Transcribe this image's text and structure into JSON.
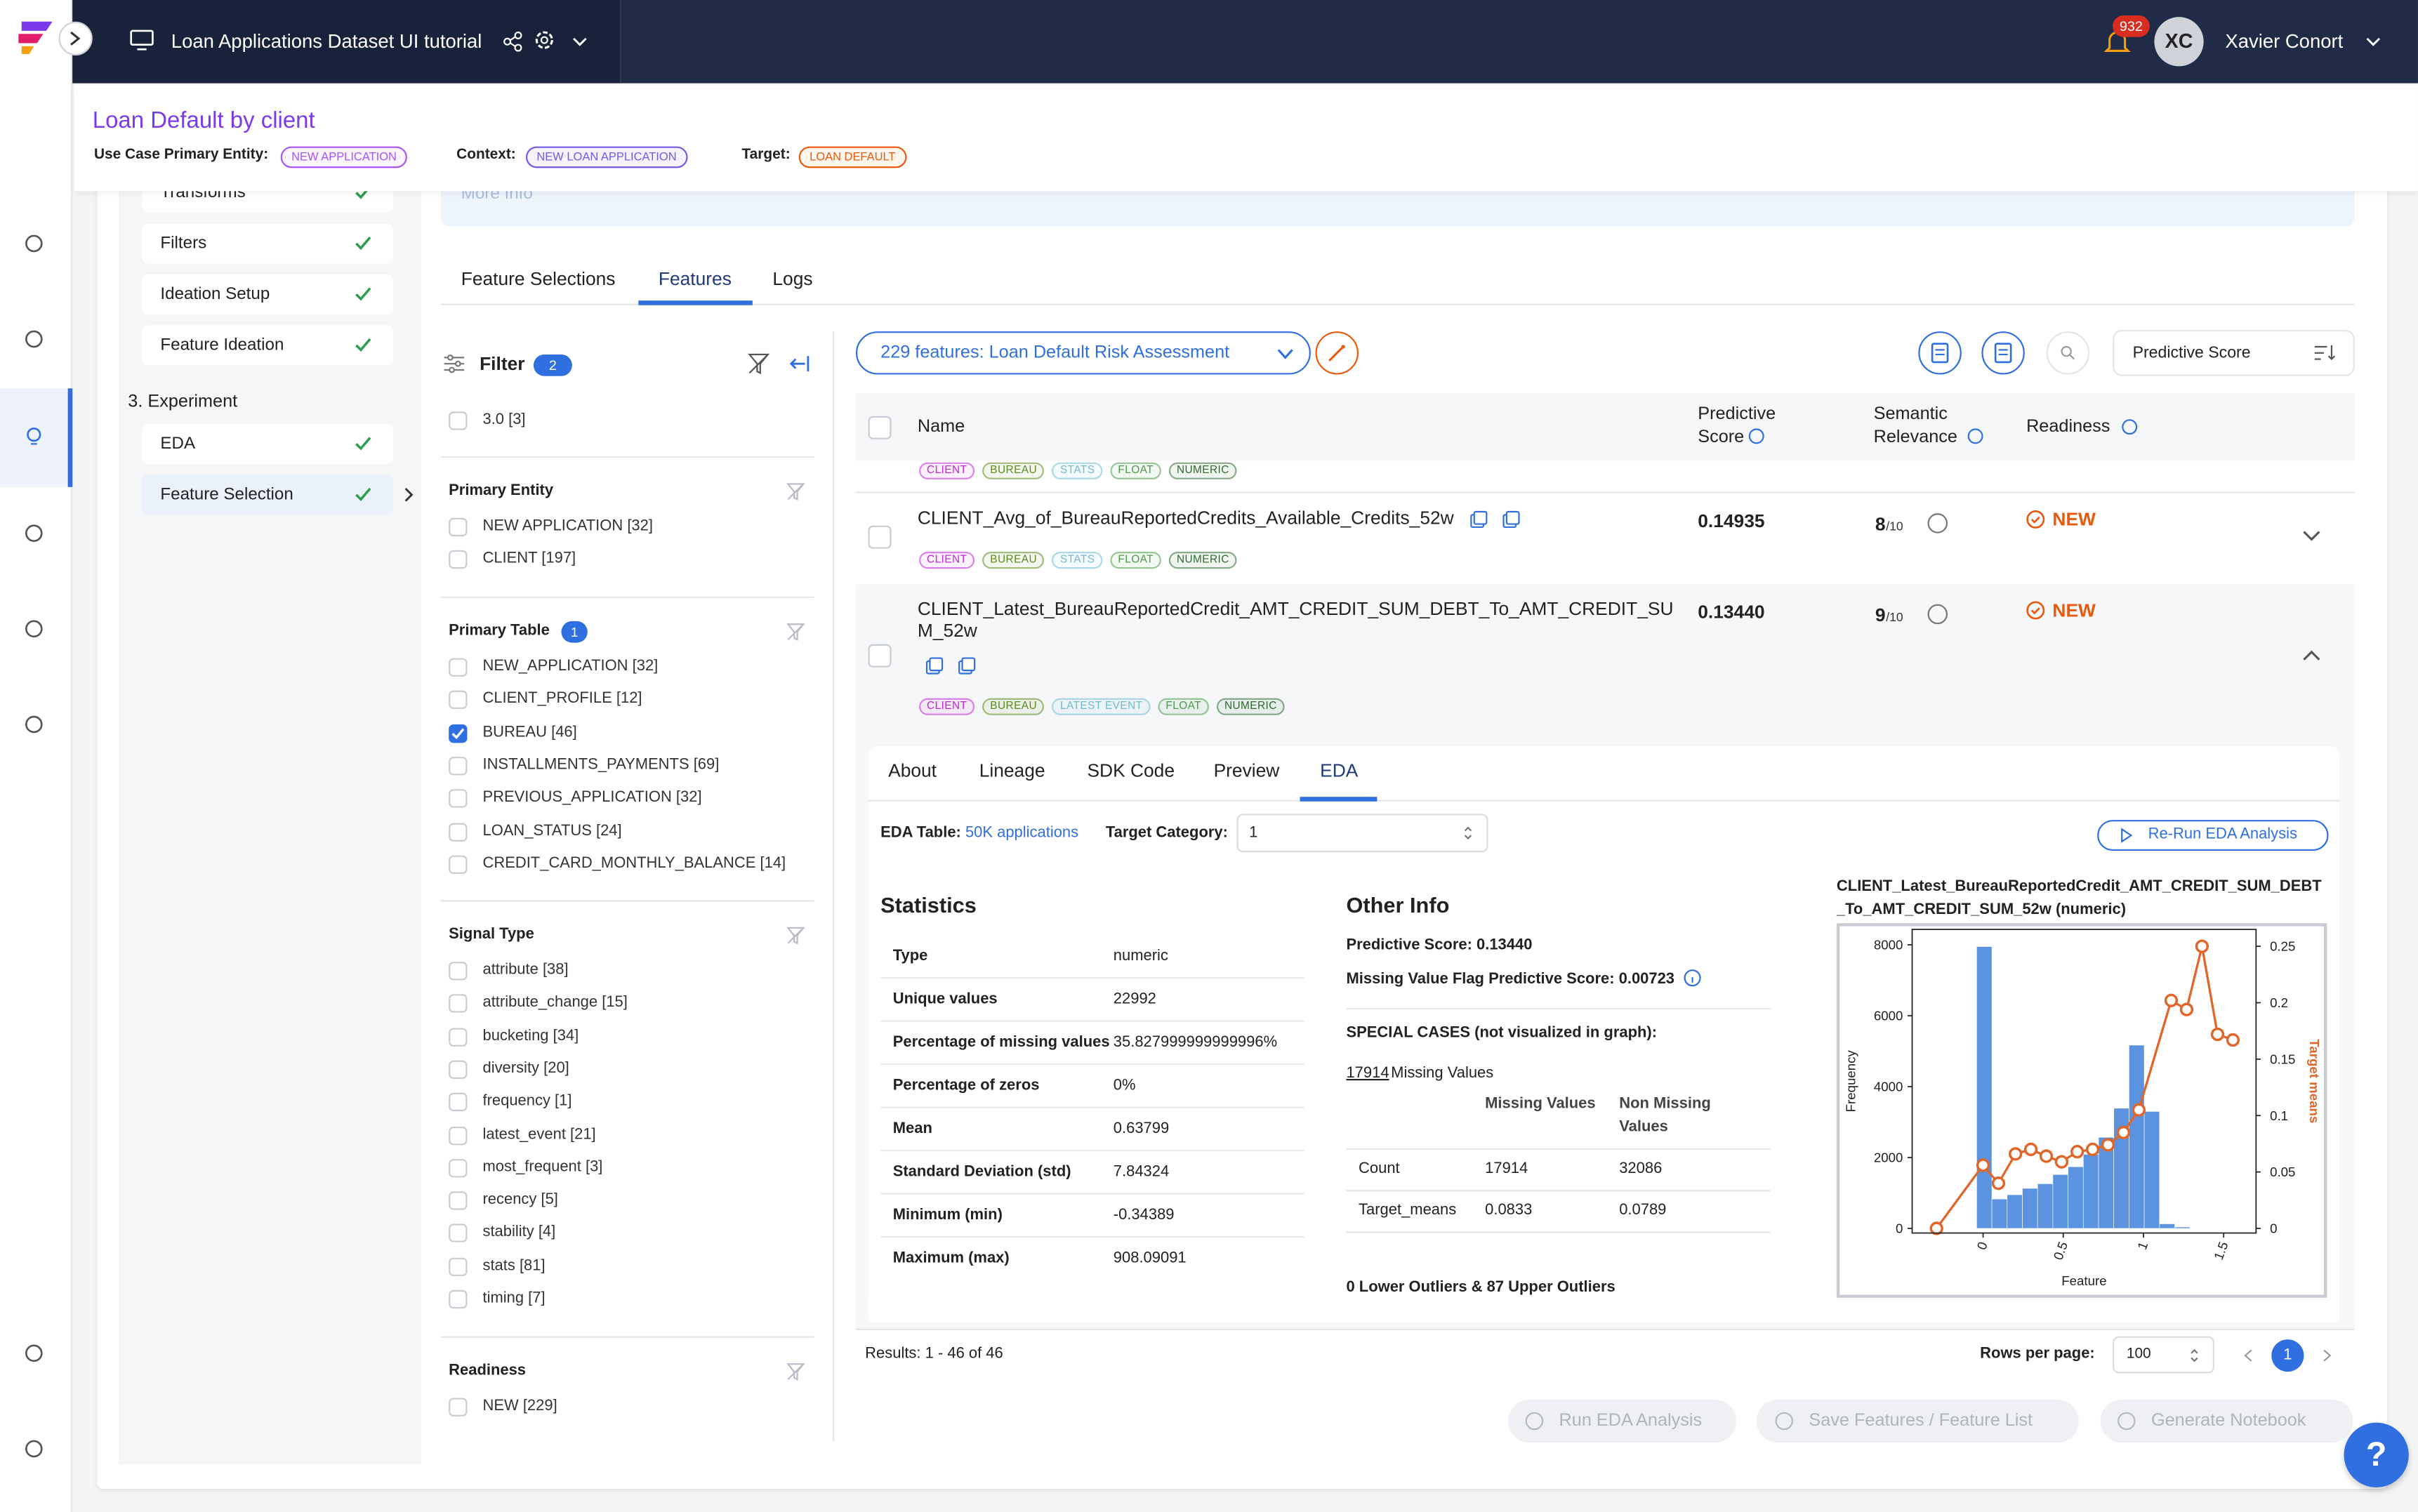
{
  "header": {
    "project": "Loan Applications Dataset UI tutorial",
    "notifications": "932",
    "avatar": "XC",
    "user": "Xavier Conort"
  },
  "use_case": {
    "title": "Loan Default by client",
    "entity_label": "Use Case Primary Entity:",
    "entity": "NEW APPLICATION",
    "context_label": "Context:",
    "context": "NEW LOAN APPLICATION",
    "target_label": "Target:",
    "target": "LOAN DEFAULT"
  },
  "steps": {
    "items": [
      "Transforms",
      "Filters",
      "Ideation Setup",
      "Feature Ideation"
    ],
    "section": "3. Experiment",
    "experiment": [
      "EDA",
      "Feature Selection"
    ]
  },
  "info_link": "More Info",
  "tabs": [
    "Feature Selections",
    "Features",
    "Logs"
  ],
  "filter": {
    "title": "Filter",
    "count": "2",
    "top_item": "3.0 [3]",
    "groups": [
      {
        "title": "Primary Entity",
        "items": [
          "NEW APPLICATION [32]",
          "CLIENT [197]"
        ]
      },
      {
        "title": "Primary Table",
        "count": "1",
        "checked": 2,
        "items": [
          "NEW_APPLICATION [32]",
          "CLIENT_PROFILE [12]",
          "BUREAU [46]",
          "INSTALLMENTS_PAYMENTS [69]",
          "PREVIOUS_APPLICATION [32]",
          "LOAN_STATUS [24]",
          "CREDIT_CARD_MONTHLY_BALANCE [14]"
        ]
      },
      {
        "title": "Signal Type",
        "items": [
          "attribute [38]",
          "attribute_change [15]",
          "bucketing [34]",
          "diversity [20]",
          "frequency [1]",
          "latest_event [21]",
          "most_frequent [3]",
          "recency [5]",
          "stability [4]",
          "stats [81]",
          "timing [7]"
        ]
      },
      {
        "title": "Readiness",
        "items": [
          "NEW [229]"
        ]
      }
    ]
  },
  "features": {
    "selector": "229 features: Loan Default Risk Assessment",
    "sort": "Predictive Score",
    "columns": [
      "Name",
      "Predictive Score",
      "Semantic Relevance",
      "Readiness"
    ],
    "rows": [
      {
        "tags": [
          {
            "label": "CLIENT",
            "color": "#c026d3"
          },
          {
            "label": "BUREAU",
            "color": "#5b8a1a"
          },
          {
            "label": "STATS",
            "color": "#6cbcd0"
          },
          {
            "label": "FLOAT",
            "color": "#4a9a4a"
          },
          {
            "label": "NUMERIC",
            "color": "#2f6b2f"
          }
        ]
      },
      {
        "name": "CLIENT_Avg_of_BureauReportedCredits_Available_Credits_52w",
        "score": "0.14935",
        "relevance": "8",
        "relevance_max": "/10",
        "readiness": "NEW",
        "tags": [
          {
            "label": "CLIENT",
            "color": "#c026d3"
          },
          {
            "label": "BUREAU",
            "color": "#5b8a1a"
          },
          {
            "label": "STATS",
            "color": "#6cbcd0"
          },
          {
            "label": "FLOAT",
            "color": "#4a9a4a"
          },
          {
            "label": "NUMERIC",
            "color": "#2f6b2f"
          }
        ]
      },
      {
        "name": "CLIENT_Latest_BureauReportedCredit_AMT_CREDIT_SUM_DEBT_To_AMT_CREDIT_SUM_52w",
        "score": "0.13440",
        "relevance": "9",
        "relevance_max": "/10",
        "readiness": "NEW",
        "tags": [
          {
            "label": "CLIENT",
            "color": "#c026d3"
          },
          {
            "label": "BUREAU",
            "color": "#5b8a1a"
          },
          {
            "label": "LATEST EVENT",
            "color": "#6cbcd0"
          },
          {
            "label": "FLOAT",
            "color": "#4a9a4a"
          },
          {
            "label": "NUMERIC",
            "color": "#2f6b2f"
          }
        ]
      }
    ]
  },
  "detail": {
    "tabs": [
      "About",
      "Lineage",
      "SDK Code",
      "Preview",
      "EDA"
    ],
    "eda_table_label": "EDA Table:",
    "eda_table": "50K applications",
    "target_label": "Target Category:",
    "target": "1",
    "rerun": "Re-Run EDA Analysis"
  },
  "statistics": {
    "title": "Statistics",
    "rows": [
      [
        "Type",
        "numeric"
      ],
      [
        "Unique values",
        "22992"
      ],
      [
        "Percentage of missing values",
        "35.827999999999996%"
      ],
      [
        "Percentage of zeros",
        "0%"
      ],
      [
        "Mean",
        "0.63799"
      ],
      [
        "Standard Deviation (std)",
        "7.84324"
      ],
      [
        "Minimum (min)",
        "-0.34389"
      ],
      [
        "Maximum (max)",
        "908.09091"
      ]
    ]
  },
  "other_info": {
    "title": "Other Info",
    "predictive_score": "Predictive Score: 0.13440",
    "missing_flag": "Missing Value Flag Predictive Score: 0.00723",
    "special": "SPECIAL CASES (not visualized in graph):",
    "missing_count": "17914",
    "missing_label": "Missing Values",
    "table": {
      "header": [
        "Missing Values",
        "Non Missing Values"
      ],
      "rows": [
        [
          "Count",
          "17914",
          "32086"
        ],
        [
          "Target_means",
          "0.0833",
          "0.0789"
        ]
      ]
    },
    "outliers": "0 Lower Outliers & 87 Upper Outliers"
  },
  "chart_data": {
    "type": "histogram",
    "title": "CLIENT_Latest_BureauReportedCredit_AMT_CREDIT_SUM_DEBT_To_AMT_CREDIT_SUM_52w (numeric)",
    "xlabel": "Feature",
    "ylabel": "Frequency",
    "y2label": "Target means",
    "bins": [
      -0.04,
      0.055,
      0.15,
      0.245,
      0.34,
      0.435,
      0.53,
      0.625,
      0.72,
      0.815,
      0.91,
      1.005,
      1.1,
      1.195,
      1.29
    ],
    "counts": [
      7950,
      830,
      950,
      1130,
      1260,
      1520,
      1740,
      2090,
      2570,
      3390,
      5170,
      3300,
      130,
      40
    ],
    "color": "#5b93e0",
    "line": {
      "x": [
        -0.29,
        0,
        0.096,
        0.202,
        0.298,
        0.394,
        0.49,
        0.587,
        0.683,
        0.779,
        0.875,
        0.971,
        1.173,
        1.269,
        1.365,
        1.462,
        1.558
      ],
      "values": [
        0,
        0.056,
        0.04,
        0.066,
        0.07,
        0.064,
        0.059,
        0.068,
        0.07,
        0.074,
        0.085,
        0.105,
        0.202,
        0.194,
        0.25,
        0.172,
        0.167
      ],
      "color": "#e0662a",
      "axis": "y2"
    },
    "xlim": [
      -0.442,
      1.702
    ],
    "ylim": [
      -130,
      8435
    ],
    "y2lim": [
      -0.0041,
      0.265
    ],
    "xticks": [
      0,
      0.5,
      1,
      1.5
    ],
    "yticks": [
      0,
      2000,
      4000,
      6000,
      8000
    ],
    "y2ticks": [
      0,
      0.05,
      0.1,
      0.15,
      0.2,
      0.25
    ]
  },
  "footer": {
    "results": "Results: 1 - 46 of 46",
    "rows_label": "Rows per page:",
    "rows": "100",
    "page": "1"
  },
  "actions": [
    "Run EDA Analysis",
    "Save Features / Feature List",
    "Generate Notebook"
  ],
  "help": "?"
}
